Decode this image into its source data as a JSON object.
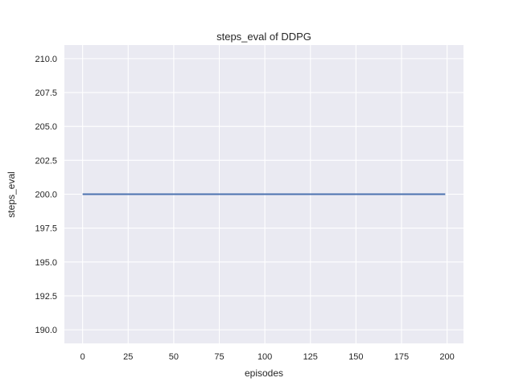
{
  "chart_data": {
    "type": "line",
    "title": "steps_eval of DDPG",
    "xlabel": "episodes",
    "ylabel": "steps_eval",
    "x_ticks": [
      0,
      25,
      50,
      75,
      100,
      125,
      150,
      175,
      200
    ],
    "x_tick_labels": [
      "0",
      "25",
      "50",
      "75",
      "100",
      "125",
      "150",
      "175",
      "200"
    ],
    "y_ticks": [
      190.0,
      192.5,
      195.0,
      197.5,
      200.0,
      202.5,
      205.0,
      207.5,
      210.0
    ],
    "y_tick_labels": [
      "190.0",
      "192.5",
      "195.0",
      "197.5",
      "200.0",
      "202.5",
      "205.0",
      "207.5",
      "210.0"
    ],
    "xlim": [
      -10,
      209
    ],
    "ylim": [
      189,
      211
    ],
    "grid": true,
    "legend": "none",
    "series": [
      {
        "name": "DDPG",
        "x": [
          0,
          199
        ],
        "y": [
          200,
          200
        ],
        "color": "#4c72b0"
      }
    ],
    "plot_background": "#eaeaf2",
    "gridline_color": "#ffffff",
    "figure_background": "#ffffff",
    "text_color": "#262626"
  }
}
